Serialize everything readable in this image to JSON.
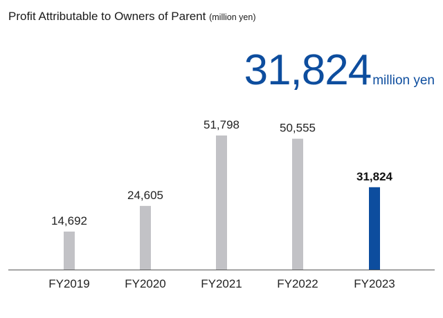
{
  "title": "Profit Attributable to Owners of Parent",
  "title_unit": "(million yen)",
  "highlight": {
    "value": "31,824",
    "unit": "million yen"
  },
  "chart_data": {
    "type": "bar",
    "categories": [
      "FY2019",
      "FY2020",
      "FY2021",
      "FY2022",
      "FY2023"
    ],
    "values": [
      14692,
      24605,
      51798,
      50555,
      31824
    ],
    "value_labels": [
      "14,692",
      "24,605",
      "51,798",
      "50,555",
      "31,824"
    ],
    "highlight_index": 4,
    "ylim": [
      0,
      60000
    ],
    "grid": false,
    "colors": {
      "bar": "#c2c2c6",
      "highlight": "#0d4d9e",
      "axis": "#555555"
    }
  }
}
